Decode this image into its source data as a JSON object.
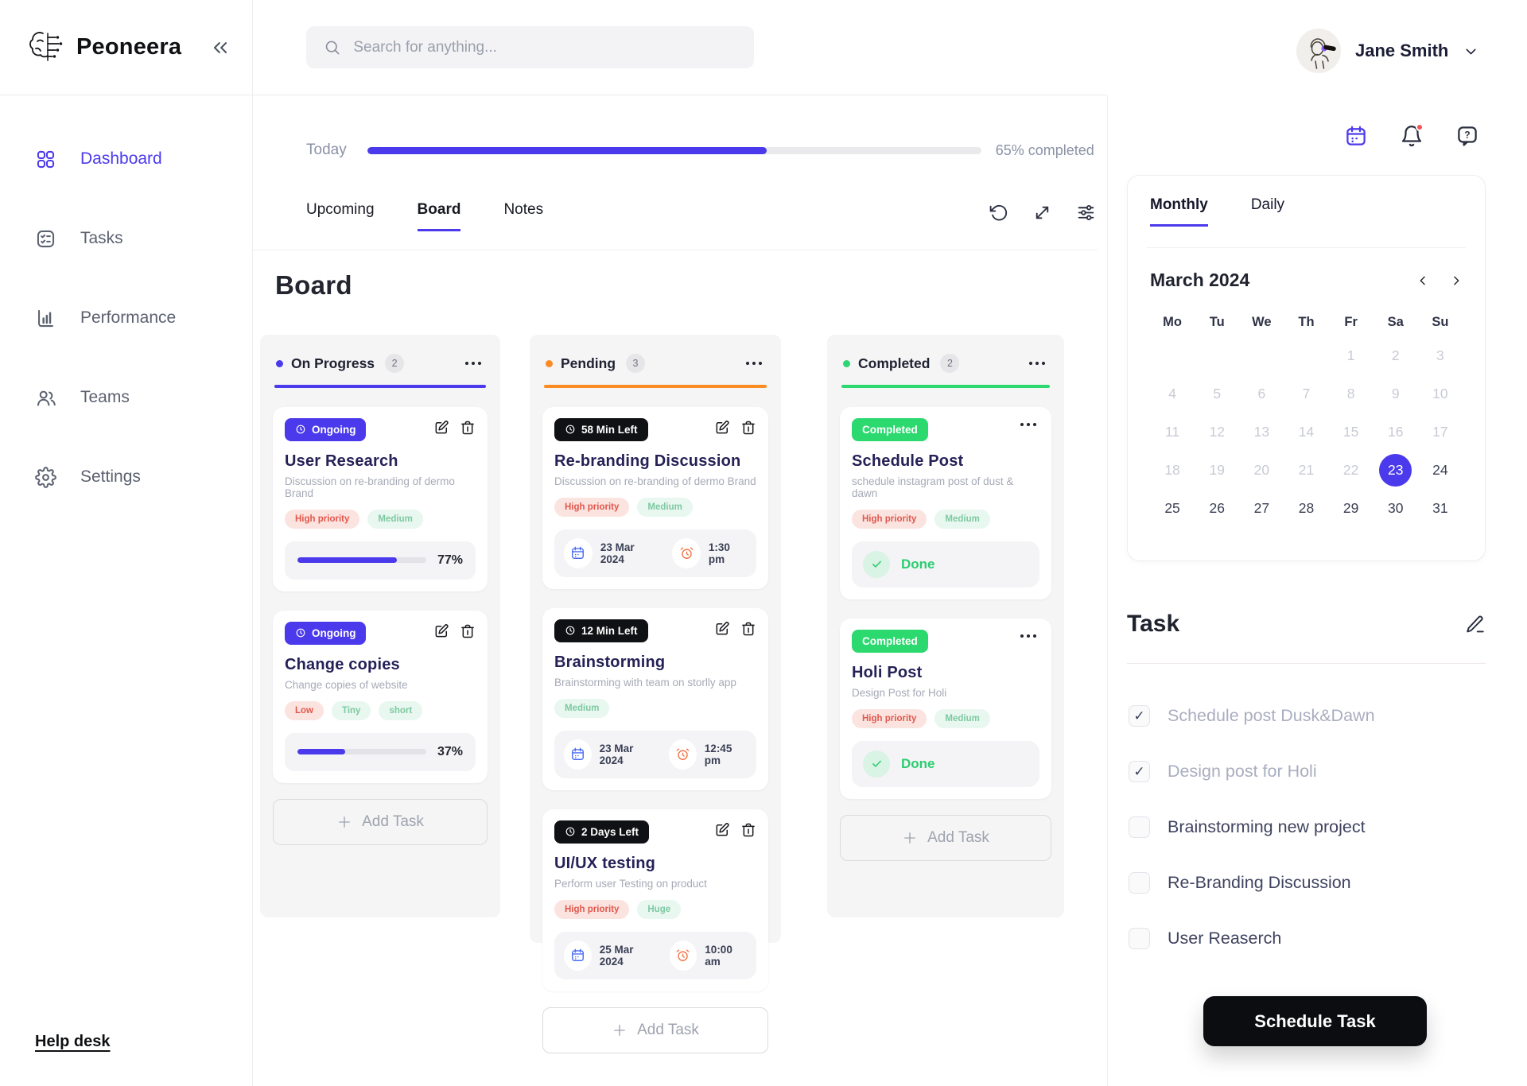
{
  "app": {
    "name": "Peoneera"
  },
  "sidebar": {
    "items": [
      {
        "label": "Dashboard",
        "active": true
      },
      {
        "label": "Tasks",
        "active": false
      },
      {
        "label": "Performance",
        "active": false
      },
      {
        "label": "Teams",
        "active": false
      },
      {
        "label": "Settings",
        "active": false
      }
    ],
    "help_link": "Help desk"
  },
  "topbar": {
    "search_placeholder": "Search for anything...",
    "user_name": "Jane Smith"
  },
  "overview": {
    "today_label": "Today",
    "progress_pct": 65,
    "progress_text": "65% completed",
    "tabs": [
      {
        "label": "Upcoming",
        "active": false
      },
      {
        "label": "Board",
        "active": true
      },
      {
        "label": "Notes",
        "active": false
      }
    ]
  },
  "board": {
    "title": "Board",
    "columns": [
      {
        "name": "On Progress",
        "count": "2",
        "accent": "#4B3AEC",
        "cards": [
          {
            "badge": "Ongoing",
            "title": "User Research",
            "desc": "Discussion on re-branding of dermo Brand",
            "tags": [
              "High priority",
              "Medium"
            ],
            "progress_pct": 77,
            "progress_label": "77%"
          },
          {
            "badge": "Ongoing",
            "title": "Change copies",
            "desc": "Change copies of website",
            "tags": [
              "Low",
              "Tiny",
              "short"
            ],
            "progress_pct": 37,
            "progress_label": "37%"
          }
        ],
        "add_task_label": "Add Task"
      },
      {
        "name": "Pending",
        "count": "3",
        "accent": "#FB8B23",
        "cards": [
          {
            "badge": "58 Min Left",
            "title": "Re-branding Discussion",
            "desc": "Discussion on re-branding of dermo Brand",
            "tags": [
              "High priority",
              "Medium"
            ],
            "date": "23 Mar 2024",
            "time": "1:30 pm"
          },
          {
            "badge": "12 Min Left",
            "title": "Brainstorming",
            "desc": "Brainstorming with team on storlly app",
            "tags": [
              "Medium"
            ],
            "date": "23 Mar 2024",
            "time": "12:45 pm"
          },
          {
            "badge": "2 Days Left",
            "title": "UI/UX testing",
            "desc": "Perform user Testing on product",
            "tags": [
              "High priority",
              "Huge"
            ],
            "date": "25 Mar 2024",
            "time": "10:00 am"
          }
        ],
        "add_task_label": "Add Task"
      },
      {
        "name": "Completed",
        "count": "2",
        "accent": "#2BD96F",
        "cards": [
          {
            "badge": "Completed",
            "title": "Schedule Post",
            "desc": "schedule instagram post of dust & dawn",
            "tags": [
              "High priority",
              "Medium"
            ],
            "done_label": "Done"
          },
          {
            "badge": "Completed",
            "title": "Holi Post",
            "desc": "Design Post for Holi",
            "tags": [
              "High priority",
              "Medium"
            ],
            "done_label": "Done"
          }
        ],
        "add_task_label": "Add Task"
      }
    ]
  },
  "calendar": {
    "tabs": [
      {
        "label": "Monthly",
        "active": true
      },
      {
        "label": "Daily",
        "active": false
      }
    ],
    "month_label": "March 2024",
    "weekdays": [
      "Mo",
      "Tu",
      "We",
      "Th",
      "Fr",
      "Sa",
      "Su"
    ],
    "leading_blanks": 4,
    "num_days": 31,
    "muted_through": 22,
    "selected_day": 23
  },
  "task_panel": {
    "title": "Task",
    "items": [
      {
        "label": "Schedule post Dusk&Dawn",
        "checked": true
      },
      {
        "label": "Design post for Holi",
        "checked": true
      },
      {
        "label": "Brainstorming new project",
        "checked": false
      },
      {
        "label": "Re-Branding Discussion",
        "checked": false
      },
      {
        "label": "User Reaserch",
        "checked": false
      }
    ],
    "button_label": "Schedule Task"
  },
  "colors": {
    "primary": "#4B3AEC",
    "orange": "#FB8B23",
    "green": "#2BD96F",
    "done_text": "#2DCC70",
    "tag_red_bg": "#FBE4E0",
    "tag_red_text": "#E2574C",
    "tag_mint_bg": "#E8F7EF",
    "tag_mint_text": "#7EC9A2",
    "notification_dot": "#F25353"
  }
}
